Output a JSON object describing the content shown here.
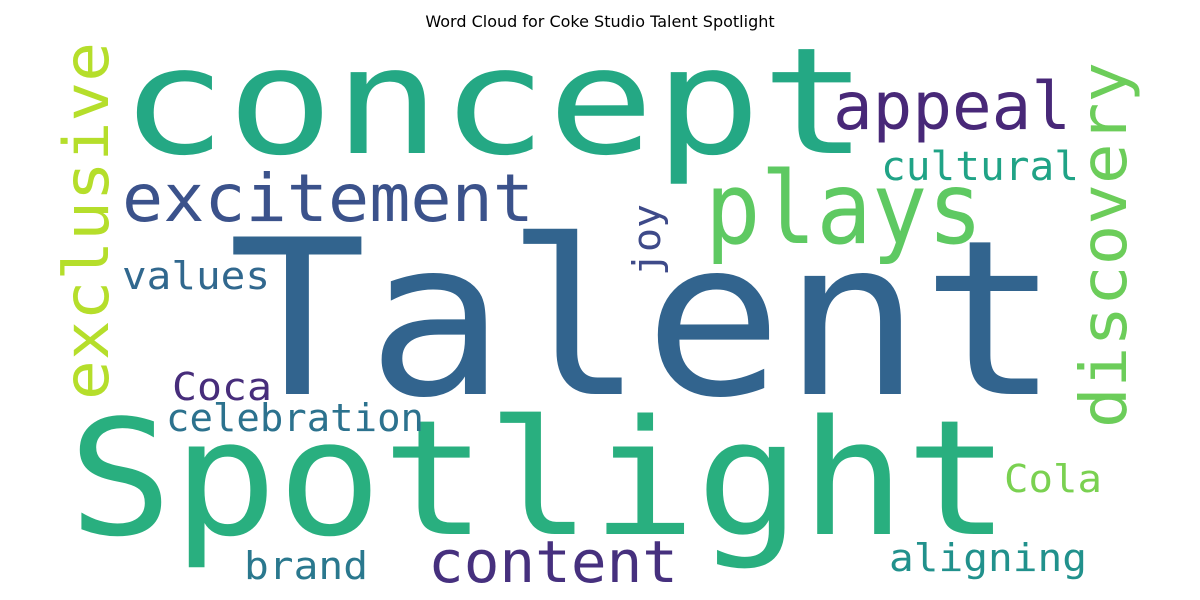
{
  "title": "Word Cloud for Coke Studio Talent Spotlight",
  "words": [
    {
      "id": "talent",
      "text": "Talent",
      "color": "#32648e"
    },
    {
      "id": "concept",
      "text": "concept",
      "color": "#24a884"
    },
    {
      "id": "spotlight",
      "text": "Spotlight",
      "color": "#29af7f"
    },
    {
      "id": "excitement",
      "text": "excitement",
      "color": "#3b528b"
    },
    {
      "id": "plays",
      "text": "plays",
      "color": "#5ec962"
    },
    {
      "id": "appeal",
      "text": "appeal",
      "color": "#482878"
    },
    {
      "id": "exclusive",
      "text": "exclusive",
      "color": "#b5de2b"
    },
    {
      "id": "discovery",
      "text": "discovery",
      "color": "#6ccd5a"
    },
    {
      "id": "cultural",
      "text": "cultural",
      "color": "#20a386"
    },
    {
      "id": "content",
      "text": "content",
      "color": "#46307e"
    },
    {
      "id": "values",
      "text": "values",
      "color": "#31688e"
    },
    {
      "id": "joy",
      "text": "joy",
      "color": "#3e4a89"
    },
    {
      "id": "celebration",
      "text": "celebration",
      "color": "#2c728e"
    },
    {
      "id": "coca",
      "text": "Coca",
      "color": "#472d7b"
    },
    {
      "id": "cola",
      "text": "Cola",
      "color": "#7ad151"
    },
    {
      "id": "brand",
      "text": "brand",
      "color": "#2a788e"
    },
    {
      "id": "aligning",
      "text": "aligning",
      "color": "#21918c"
    }
  ]
}
